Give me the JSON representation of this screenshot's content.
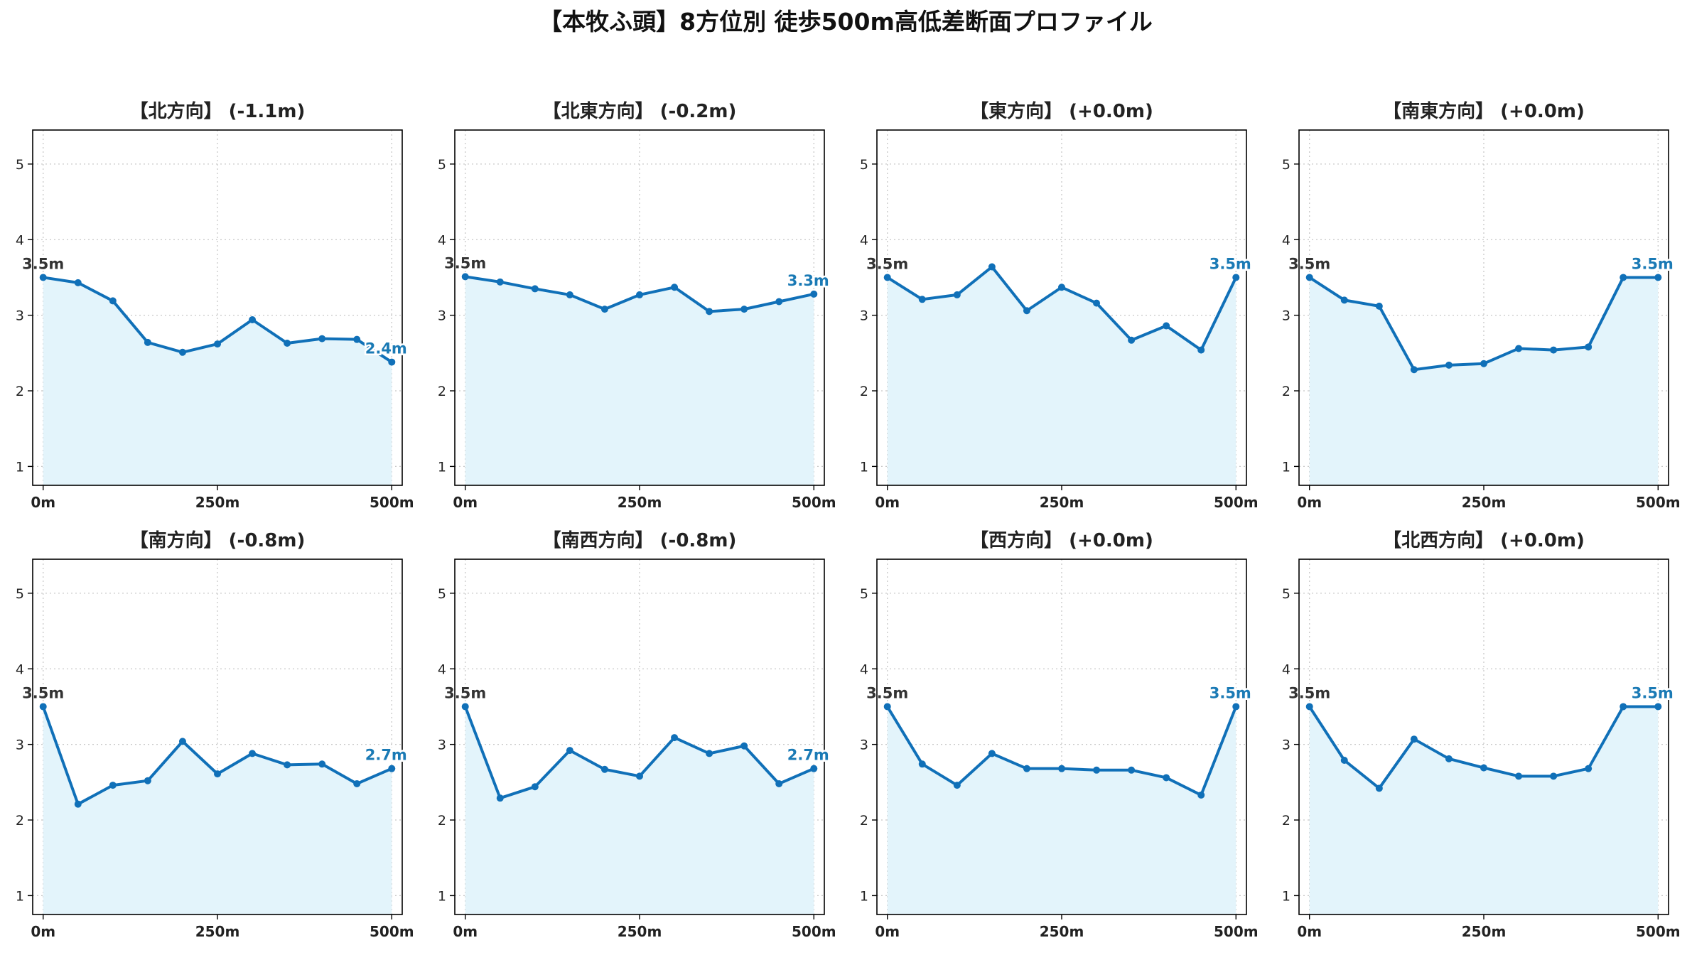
{
  "chart_data": {
    "type": "line",
    "title": "【本牧ふ頭】8方位別 徒歩500m高低差断面プロファイル",
    "x": [
      0,
      50,
      100,
      150,
      200,
      250,
      300,
      350,
      400,
      450,
      500
    ],
    "xticks": [
      0,
      250,
      500
    ],
    "xtick_labels": [
      "0m",
      "250m",
      "500m"
    ],
    "xlim": [
      -15,
      515
    ],
    "yticks": [
      1,
      2,
      3,
      4,
      5
    ],
    "ylim": [
      0.75,
      5.45
    ],
    "grid": true,
    "colors": {
      "line": "#1070b8",
      "fill": "#e3f4fb",
      "start_label": "#333333",
      "end_label": "#1a7ab5",
      "grid": "#c8c8c8"
    },
    "panels": [
      {
        "title": "【北方向】 (-1.1m)",
        "values": [
          3.5,
          3.43,
          3.19,
          2.64,
          2.51,
          2.62,
          2.94,
          2.63,
          2.69,
          2.68,
          2.38
        ],
        "start_label": "3.5m",
        "end_label": "2.4m"
      },
      {
        "title": "【北東方向】 (-0.2m)",
        "values": [
          3.51,
          3.44,
          3.35,
          3.27,
          3.08,
          3.27,
          3.37,
          3.05,
          3.08,
          3.18,
          3.28
        ],
        "start_label": "3.5m",
        "end_label": "3.3m"
      },
      {
        "title": "【東方向】 (+0.0m)",
        "values": [
          3.5,
          3.21,
          3.27,
          3.64,
          3.06,
          3.37,
          3.16,
          2.67,
          2.86,
          2.54,
          3.5
        ],
        "start_label": "3.5m",
        "end_label": "3.5m"
      },
      {
        "title": "【南東方向】 (+0.0m)",
        "values": [
          3.5,
          3.2,
          3.12,
          2.28,
          2.34,
          2.36,
          2.56,
          2.54,
          2.58,
          3.5,
          3.5
        ],
        "start_label": "3.5m",
        "end_label": "3.5m"
      },
      {
        "title": "【南方向】 (-0.8m)",
        "values": [
          3.5,
          2.21,
          2.46,
          2.52,
          3.04,
          2.61,
          2.88,
          2.73,
          2.74,
          2.48,
          2.68
        ],
        "start_label": "3.5m",
        "end_label": "2.7m"
      },
      {
        "title": "【南西方向】 (-0.8m)",
        "values": [
          3.5,
          2.29,
          2.44,
          2.92,
          2.67,
          2.58,
          3.09,
          2.88,
          2.98,
          2.48,
          2.68
        ],
        "start_label": "3.5m",
        "end_label": "2.7m"
      },
      {
        "title": "【西方向】 (+0.0m)",
        "values": [
          3.5,
          2.74,
          2.46,
          2.88,
          2.68,
          2.68,
          2.66,
          2.66,
          2.56,
          2.33,
          3.5
        ],
        "start_label": "3.5m",
        "end_label": "3.5m"
      },
      {
        "title": "【北西方向】 (+0.0m)",
        "values": [
          3.5,
          2.79,
          2.42,
          3.07,
          2.81,
          2.69,
          2.58,
          2.58,
          2.68,
          3.5,
          3.5
        ],
        "start_label": "3.5m",
        "end_label": "3.5m"
      }
    ]
  }
}
